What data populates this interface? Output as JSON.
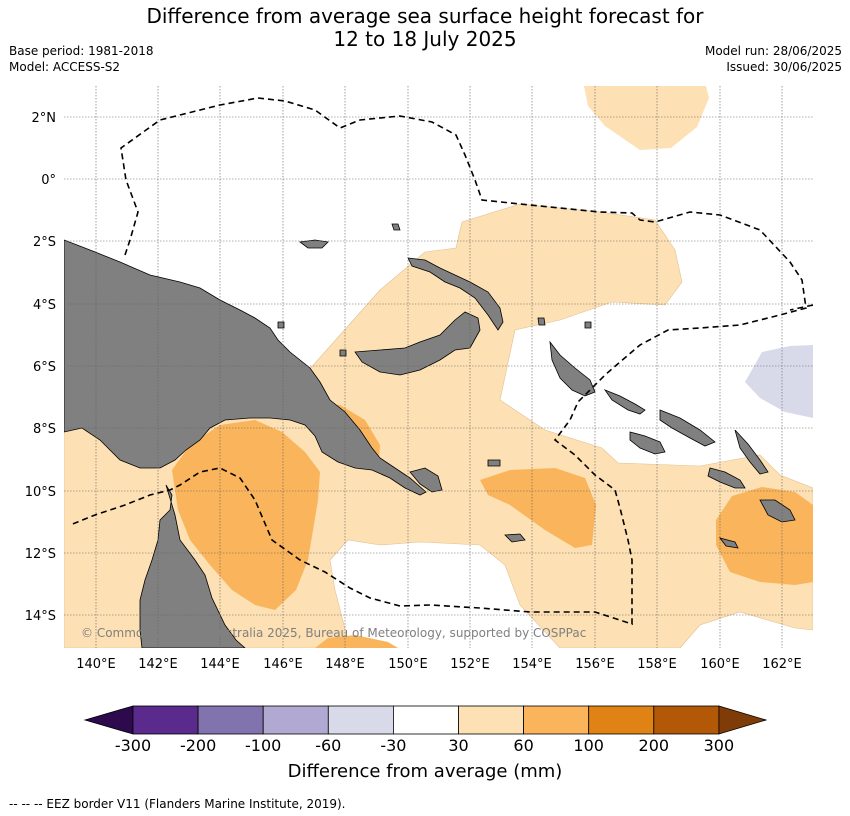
{
  "header": {
    "title_line1": "Difference from average sea surface height forecast for",
    "title_line2": "12 to 18 July 2025",
    "base_period": "Base period: 1981-2018",
    "model": "Model: ACCESS-S2",
    "model_run": "Model run: 28/06/2025",
    "issued": "Issued: 30/06/2025"
  },
  "map": {
    "region": "Papua New Guinea and Solomon Islands",
    "lon_range": [
      139,
      163
    ],
    "lat_range": [
      -15,
      3
    ],
    "lat_ticks": [
      "2°N",
      "0°",
      "2°S",
      "4°S",
      "6°S",
      "8°S",
      "10°S",
      "12°S",
      "14°S"
    ],
    "lon_ticks": [
      "140°E",
      "142°E",
      "144°E",
      "146°E",
      "148°E",
      "150°E",
      "152°E",
      "154°E",
      "156°E",
      "158°E",
      "160°E",
      "162°E"
    ],
    "copyright": "© Commonwealth of Australia 2025, Bureau of Meteorology, supported by COSPPac",
    "land_color": "#808080",
    "grid": true
  },
  "colorbar": {
    "title": "Difference from average (mm)",
    "labels": [
      "-300",
      "-200",
      "-100",
      "-60",
      "-30",
      "30",
      "60",
      "100",
      "200",
      "300"
    ],
    "colors": [
      "#2d0a4e",
      "#5a2a8c",
      "#8173ad",
      "#b1a9d2",
      "#d8daea",
      "#ffffff",
      "#fde0b3",
      "#f9b45c",
      "#e08214",
      "#b35806",
      "#7f3b08"
    ]
  },
  "footnote": "--  --  -- EEZ border V11 (Flanders Marine Institute, 2019)."
}
